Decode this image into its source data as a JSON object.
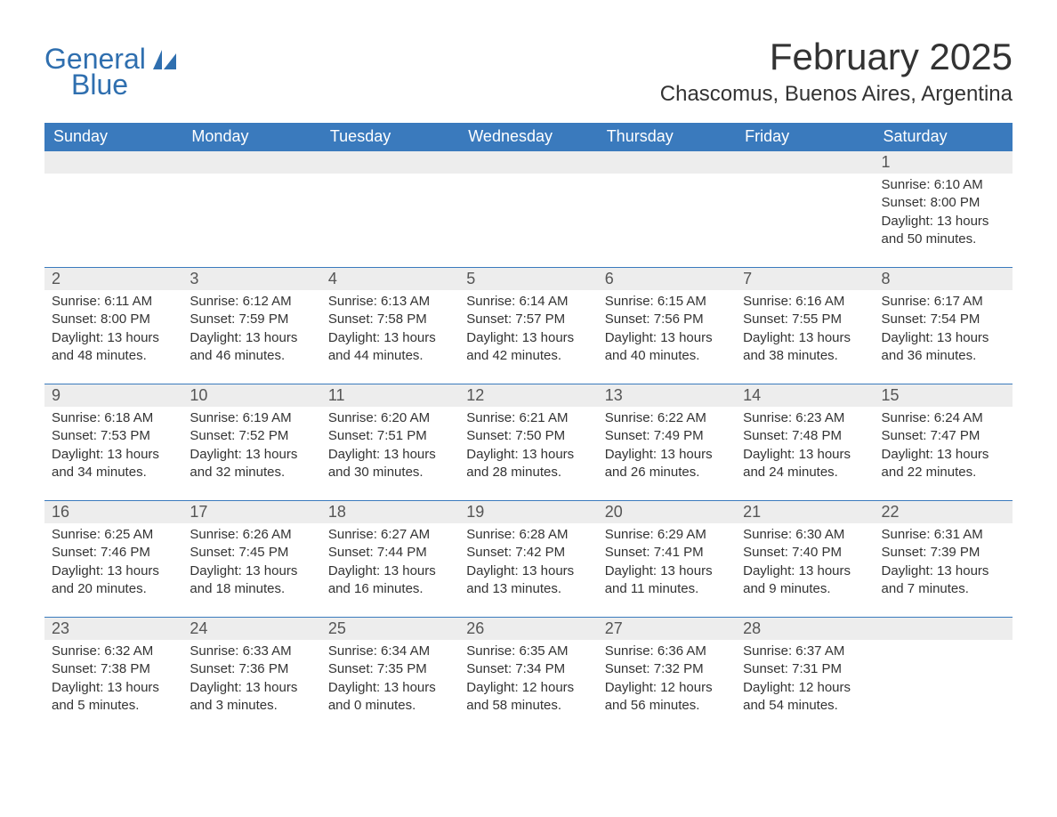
{
  "brand": {
    "general": "General",
    "blue": "Blue"
  },
  "title": "February 2025",
  "location": "Chascomus, Buenos Aires, Argentina",
  "colors": {
    "header_bg": "#3a7abd",
    "header_text": "#ffffff",
    "daynum_bg": "#ededed",
    "week_border": "#3a7abd",
    "body_text": "#333333",
    "brand_color": "#2f6faf",
    "page_bg": "#ffffff"
  },
  "typography": {
    "title_fontsize": 42,
    "location_fontsize": 24,
    "dow_fontsize": 18,
    "daynum_fontsize": 18,
    "body_fontsize": 15
  },
  "days_of_week": [
    "Sunday",
    "Monday",
    "Tuesday",
    "Wednesday",
    "Thursday",
    "Friday",
    "Saturday"
  ],
  "weeks": [
    {
      "cells": [
        {
          "num": "",
          "sunrise": "",
          "sunset": "",
          "daylight": ""
        },
        {
          "num": "",
          "sunrise": "",
          "sunset": "",
          "daylight": ""
        },
        {
          "num": "",
          "sunrise": "",
          "sunset": "",
          "daylight": ""
        },
        {
          "num": "",
          "sunrise": "",
          "sunset": "",
          "daylight": ""
        },
        {
          "num": "",
          "sunrise": "",
          "sunset": "",
          "daylight": ""
        },
        {
          "num": "",
          "sunrise": "",
          "sunset": "",
          "daylight": ""
        },
        {
          "num": "1",
          "sunrise": "Sunrise: 6:10 AM",
          "sunset": "Sunset: 8:00 PM",
          "daylight": "Daylight: 13 hours and 50 minutes."
        }
      ]
    },
    {
      "cells": [
        {
          "num": "2",
          "sunrise": "Sunrise: 6:11 AM",
          "sunset": "Sunset: 8:00 PM",
          "daylight": "Daylight: 13 hours and 48 minutes."
        },
        {
          "num": "3",
          "sunrise": "Sunrise: 6:12 AM",
          "sunset": "Sunset: 7:59 PM",
          "daylight": "Daylight: 13 hours and 46 minutes."
        },
        {
          "num": "4",
          "sunrise": "Sunrise: 6:13 AM",
          "sunset": "Sunset: 7:58 PM",
          "daylight": "Daylight: 13 hours and 44 minutes."
        },
        {
          "num": "5",
          "sunrise": "Sunrise: 6:14 AM",
          "sunset": "Sunset: 7:57 PM",
          "daylight": "Daylight: 13 hours and 42 minutes."
        },
        {
          "num": "6",
          "sunrise": "Sunrise: 6:15 AM",
          "sunset": "Sunset: 7:56 PM",
          "daylight": "Daylight: 13 hours and 40 minutes."
        },
        {
          "num": "7",
          "sunrise": "Sunrise: 6:16 AM",
          "sunset": "Sunset: 7:55 PM",
          "daylight": "Daylight: 13 hours and 38 minutes."
        },
        {
          "num": "8",
          "sunrise": "Sunrise: 6:17 AM",
          "sunset": "Sunset: 7:54 PM",
          "daylight": "Daylight: 13 hours and 36 minutes."
        }
      ]
    },
    {
      "cells": [
        {
          "num": "9",
          "sunrise": "Sunrise: 6:18 AM",
          "sunset": "Sunset: 7:53 PM",
          "daylight": "Daylight: 13 hours and 34 minutes."
        },
        {
          "num": "10",
          "sunrise": "Sunrise: 6:19 AM",
          "sunset": "Sunset: 7:52 PM",
          "daylight": "Daylight: 13 hours and 32 minutes."
        },
        {
          "num": "11",
          "sunrise": "Sunrise: 6:20 AM",
          "sunset": "Sunset: 7:51 PM",
          "daylight": "Daylight: 13 hours and 30 minutes."
        },
        {
          "num": "12",
          "sunrise": "Sunrise: 6:21 AM",
          "sunset": "Sunset: 7:50 PM",
          "daylight": "Daylight: 13 hours and 28 minutes."
        },
        {
          "num": "13",
          "sunrise": "Sunrise: 6:22 AM",
          "sunset": "Sunset: 7:49 PM",
          "daylight": "Daylight: 13 hours and 26 minutes."
        },
        {
          "num": "14",
          "sunrise": "Sunrise: 6:23 AM",
          "sunset": "Sunset: 7:48 PM",
          "daylight": "Daylight: 13 hours and 24 minutes."
        },
        {
          "num": "15",
          "sunrise": "Sunrise: 6:24 AM",
          "sunset": "Sunset: 7:47 PM",
          "daylight": "Daylight: 13 hours and 22 minutes."
        }
      ]
    },
    {
      "cells": [
        {
          "num": "16",
          "sunrise": "Sunrise: 6:25 AM",
          "sunset": "Sunset: 7:46 PM",
          "daylight": "Daylight: 13 hours and 20 minutes."
        },
        {
          "num": "17",
          "sunrise": "Sunrise: 6:26 AM",
          "sunset": "Sunset: 7:45 PM",
          "daylight": "Daylight: 13 hours and 18 minutes."
        },
        {
          "num": "18",
          "sunrise": "Sunrise: 6:27 AM",
          "sunset": "Sunset: 7:44 PM",
          "daylight": "Daylight: 13 hours and 16 minutes."
        },
        {
          "num": "19",
          "sunrise": "Sunrise: 6:28 AM",
          "sunset": "Sunset: 7:42 PM",
          "daylight": "Daylight: 13 hours and 13 minutes."
        },
        {
          "num": "20",
          "sunrise": "Sunrise: 6:29 AM",
          "sunset": "Sunset: 7:41 PM",
          "daylight": "Daylight: 13 hours and 11 minutes."
        },
        {
          "num": "21",
          "sunrise": "Sunrise: 6:30 AM",
          "sunset": "Sunset: 7:40 PM",
          "daylight": "Daylight: 13 hours and 9 minutes."
        },
        {
          "num": "22",
          "sunrise": "Sunrise: 6:31 AM",
          "sunset": "Sunset: 7:39 PM",
          "daylight": "Daylight: 13 hours and 7 minutes."
        }
      ]
    },
    {
      "cells": [
        {
          "num": "23",
          "sunrise": "Sunrise: 6:32 AM",
          "sunset": "Sunset: 7:38 PM",
          "daylight": "Daylight: 13 hours and 5 minutes."
        },
        {
          "num": "24",
          "sunrise": "Sunrise: 6:33 AM",
          "sunset": "Sunset: 7:36 PM",
          "daylight": "Daylight: 13 hours and 3 minutes."
        },
        {
          "num": "25",
          "sunrise": "Sunrise: 6:34 AM",
          "sunset": "Sunset: 7:35 PM",
          "daylight": "Daylight: 13 hours and 0 minutes."
        },
        {
          "num": "26",
          "sunrise": "Sunrise: 6:35 AM",
          "sunset": "Sunset: 7:34 PM",
          "daylight": "Daylight: 12 hours and 58 minutes."
        },
        {
          "num": "27",
          "sunrise": "Sunrise: 6:36 AM",
          "sunset": "Sunset: 7:32 PM",
          "daylight": "Daylight: 12 hours and 56 minutes."
        },
        {
          "num": "28",
          "sunrise": "Sunrise: 6:37 AM",
          "sunset": "Sunset: 7:31 PM",
          "daylight": "Daylight: 12 hours and 54 minutes."
        },
        {
          "num": "",
          "sunrise": "",
          "sunset": "",
          "daylight": ""
        }
      ]
    }
  ]
}
